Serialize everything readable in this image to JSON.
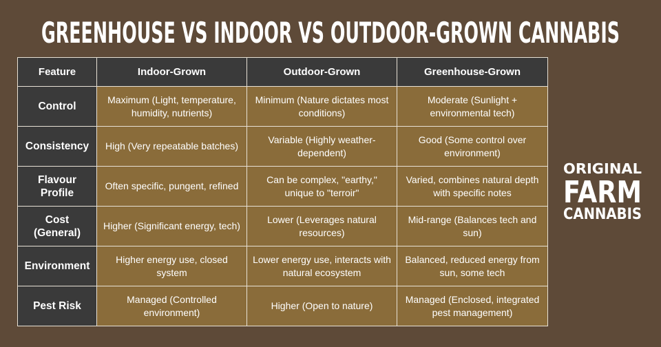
{
  "title": "GREENHOUSE VS INDOOR VS OUTDOOR-GROWN CANNABIS",
  "table": {
    "header": [
      "Feature",
      "Indoor-Grown",
      "Outdoor-Grown",
      "Greenhouse-Grown"
    ],
    "rows": [
      [
        "Control",
        "Maximum (Light, temperature, humidity, nutrients)",
        "Minimum (Nature dictates most conditions)",
        "Moderate (Sunlight + environmental tech)"
      ],
      [
        "Consistency",
        "High (Very repeatable batches)",
        "Variable (Highly weather-dependent)",
        "Good (Some control over environment)"
      ],
      [
        "Flavour Profile",
        "Often specific, pungent, refined",
        "Can be complex, \"earthy,\" unique to \"terroir\"",
        "Varied, combines natural depth with specific notes"
      ],
      [
        "Cost (General)",
        "Higher (Significant energy, tech)",
        "Lower (Leverages natural resources)",
        "Mid-range (Balances tech and sun)"
      ],
      [
        "Environment",
        "Higher energy use, closed system",
        "Lower energy use, interacts with natural ecosystem",
        "Balanced, reduced energy from sun, some tech"
      ],
      [
        "Pest Risk",
        "Managed (Controlled environment)",
        "Higher (Open to nature)",
        "Managed (Enclosed, integrated pest management)"
      ]
    ]
  },
  "logo": {
    "line1": "ORIGINAL",
    "line2": "FARM",
    "line3": "CANNABIS"
  }
}
